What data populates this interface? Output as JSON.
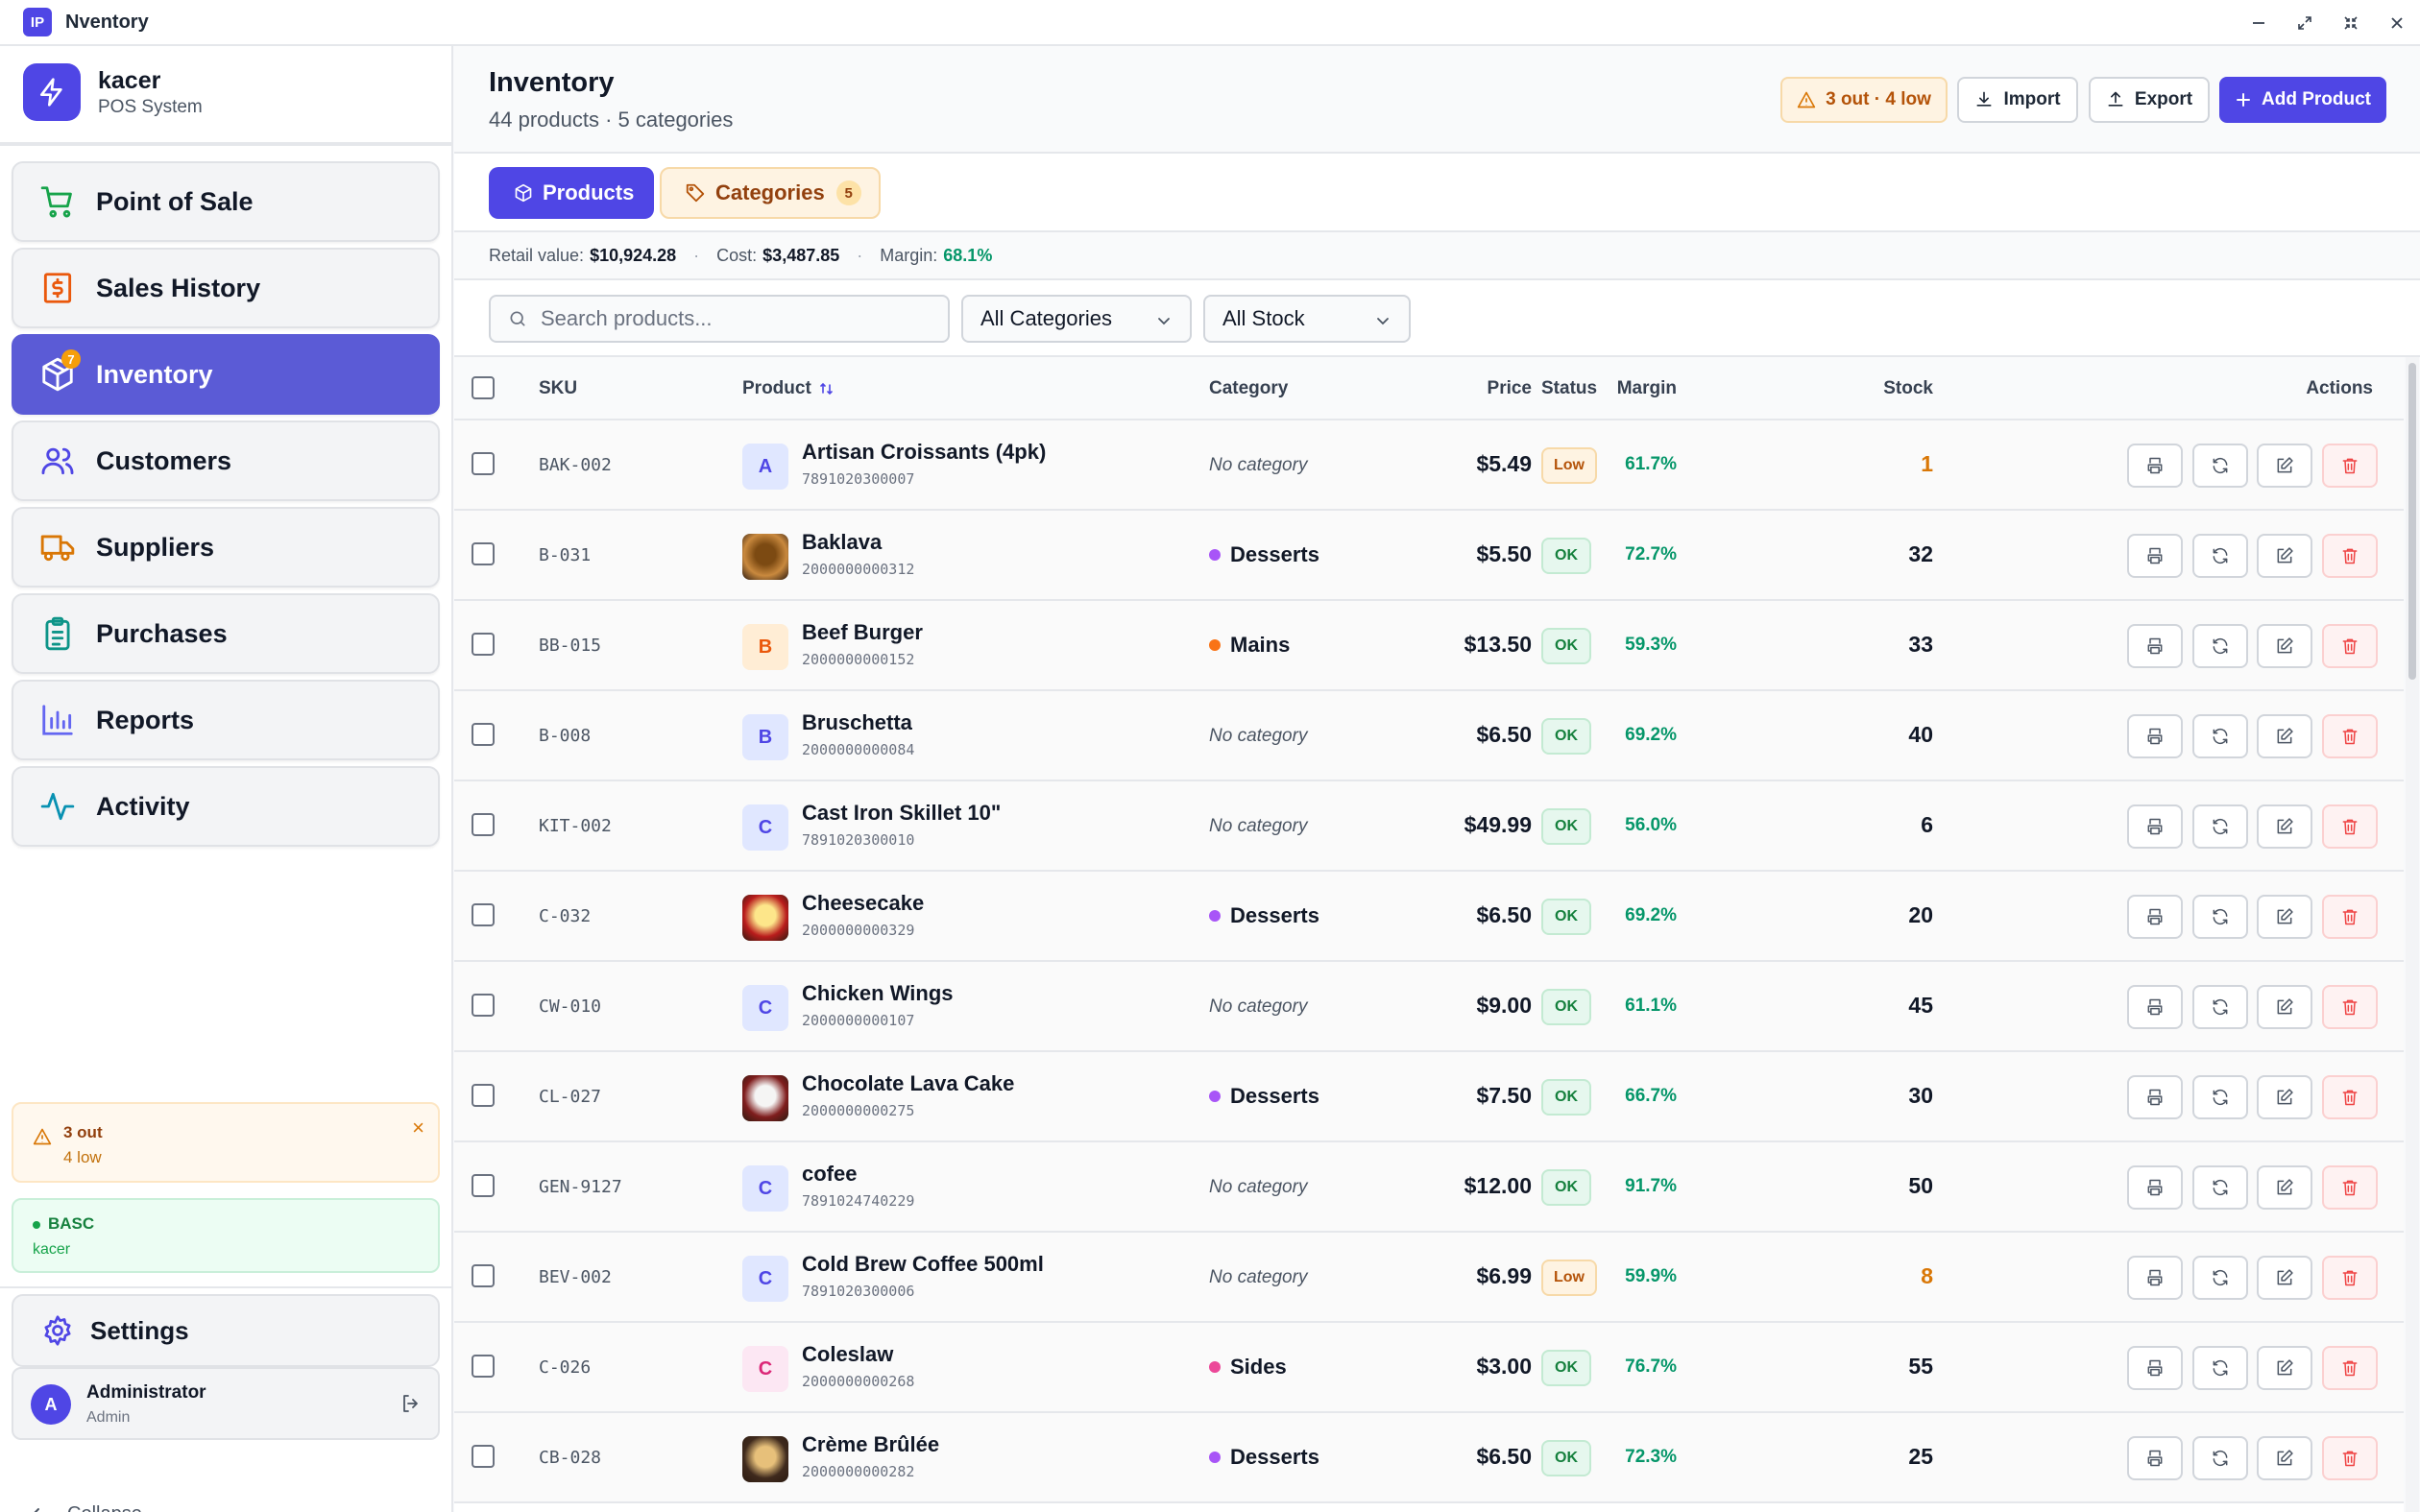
{
  "window": {
    "logo_text": "IP",
    "title": "Nventory"
  },
  "brand": {
    "name": "kacer",
    "subtitle": "POS System"
  },
  "nav": [
    {
      "label": "Point of Sale",
      "icon": "shopping-cart-icon",
      "color": "#16a34a"
    },
    {
      "label": "Sales History",
      "icon": "receipt-dollar-icon",
      "color": "#ea580c"
    },
    {
      "label": "Inventory",
      "icon": "package-icon",
      "color": "#ffffff",
      "active": true,
      "badge": "7"
    },
    {
      "label": "Customers",
      "icon": "users-icon",
      "color": "#4f46e5"
    },
    {
      "label": "Suppliers",
      "icon": "truck-icon",
      "color": "#d97706"
    },
    {
      "label": "Purchases",
      "icon": "clipboard-list-icon",
      "color": "#0d9488"
    },
    {
      "label": "Reports",
      "icon": "bar-chart-icon",
      "color": "#6366f1"
    },
    {
      "label": "Activity",
      "icon": "activity-pulse-icon",
      "color": "#0891b2"
    }
  ],
  "stock_alert": {
    "out": "3 out",
    "low": "4 low",
    "close": "×"
  },
  "plan": {
    "name": "BASC",
    "user": "kacer"
  },
  "settings": {
    "label": "Settings"
  },
  "user": {
    "initial": "A",
    "name": "Administrator",
    "role": "Admin"
  },
  "collapse": {
    "label": "Collapse"
  },
  "header": {
    "title": "Inventory",
    "subtitle": "44 products · 5 categories",
    "alert_label": "3 out · 4 low",
    "import_label": "Import",
    "export_label": "Export",
    "add_label": "Add Product"
  },
  "tabs": {
    "products": "Products",
    "categories": "Categories",
    "categories_count": "5"
  },
  "stats": {
    "retail_label": "Retail value:",
    "retail_value": "$10,924.28",
    "cost_label": "Cost:",
    "cost_value": "$3,487.85",
    "margin_label": "Margin:",
    "margin_value": "68.1%",
    "separator": "·"
  },
  "filters": {
    "search_placeholder": "Search products...",
    "category": "All Categories",
    "stock": "All Stock"
  },
  "table": {
    "columns": {
      "sku": "SKU",
      "product": "Product",
      "category": "Category",
      "price": "Price",
      "margin": "Margin",
      "status": "Status",
      "stock": "Stock",
      "actions": "Actions"
    },
    "rows": [
      {
        "sku": "BAK-002",
        "name": "Artisan Croissants (4pk)",
        "code": "7891020300007",
        "initial": "A",
        "thumb": "letter",
        "thumb_bg": "#e0e7ff",
        "thumb_fg": "#4f46e5",
        "category": "No category",
        "cat_color": "",
        "price": "$5.49",
        "margin": "61.7%",
        "status": "Low",
        "stock": "1"
      },
      {
        "sku": "B-031",
        "name": "Baklava",
        "code": "2000000000312",
        "initial": "",
        "thumb": "photo",
        "thumb_bg": "#c9893e",
        "thumb_fg": "#7c4a12",
        "category": "Desserts",
        "cat_color": "#a855f7",
        "price": "$5.50",
        "margin": "72.7%",
        "status": "OK",
        "stock": "32"
      },
      {
        "sku": "BB-015",
        "name": "Beef Burger",
        "code": "2000000000152",
        "initial": "B",
        "thumb": "letter",
        "thumb_bg": "#ffedd5",
        "thumb_fg": "#ea580c",
        "category": "Mains",
        "cat_color": "#f97316",
        "price": "$13.50",
        "margin": "59.3%",
        "status": "OK",
        "stock": "33"
      },
      {
        "sku": "B-008",
        "name": "Bruschetta",
        "code": "2000000000084",
        "initial": "B",
        "thumb": "letter",
        "thumb_bg": "#e0e7ff",
        "thumb_fg": "#4f46e5",
        "category": "No category",
        "cat_color": "",
        "price": "$6.50",
        "margin": "69.2%",
        "status": "OK",
        "stock": "40"
      },
      {
        "sku": "KIT-002",
        "name": "Cast Iron Skillet 10\"",
        "code": "7891020300010",
        "initial": "C",
        "thumb": "letter",
        "thumb_bg": "#e0e7ff",
        "thumb_fg": "#4f46e5",
        "category": "No category",
        "cat_color": "",
        "price": "$49.99",
        "margin": "56.0%",
        "status": "OK",
        "stock": "6"
      },
      {
        "sku": "C-032",
        "name": "Cheesecake",
        "code": "2000000000329",
        "initial": "",
        "thumb": "photo",
        "thumb_bg": "#b91c1c",
        "thumb_fg": "#fde68a",
        "category": "Desserts",
        "cat_color": "#a855f7",
        "price": "$6.50",
        "margin": "69.2%",
        "status": "OK",
        "stock": "20"
      },
      {
        "sku": "CW-010",
        "name": "Chicken Wings",
        "code": "2000000000107",
        "initial": "C",
        "thumb": "letter",
        "thumb_bg": "#e0e7ff",
        "thumb_fg": "#4f46e5",
        "category": "No category",
        "cat_color": "",
        "price": "$9.00",
        "margin": "61.1%",
        "status": "OK",
        "stock": "45"
      },
      {
        "sku": "CL-027",
        "name": "Chocolate Lava Cake",
        "code": "2000000000275",
        "initial": "",
        "thumb": "photo",
        "thumb_bg": "#7f1d1d",
        "thumb_fg": "#f5f5f4",
        "category": "Desserts",
        "cat_color": "#a855f7",
        "price": "$7.50",
        "margin": "66.7%",
        "status": "OK",
        "stock": "30"
      },
      {
        "sku": "GEN-9127",
        "name": "cofee",
        "code": "7891024740229",
        "initial": "C",
        "thumb": "letter",
        "thumb_bg": "#e0e7ff",
        "thumb_fg": "#4f46e5",
        "category": "No category",
        "cat_color": "",
        "price": "$12.00",
        "margin": "91.7%",
        "status": "OK",
        "stock": "50"
      },
      {
        "sku": "BEV-002",
        "name": "Cold Brew Coffee 500ml",
        "code": "7891020300006",
        "initial": "C",
        "thumb": "letter",
        "thumb_bg": "#e0e7ff",
        "thumb_fg": "#4f46e5",
        "category": "No category",
        "cat_color": "",
        "price": "$6.99",
        "margin": "59.9%",
        "status": "Low",
        "stock": "8"
      },
      {
        "sku": "C-026",
        "name": "Coleslaw",
        "code": "2000000000268",
        "initial": "C",
        "thumb": "letter",
        "thumb_bg": "#fce7f3",
        "thumb_fg": "#db2777",
        "category": "Sides",
        "cat_color": "#ec4899",
        "price": "$3.00",
        "margin": "76.7%",
        "status": "OK",
        "stock": "55"
      },
      {
        "sku": "CB-028",
        "name": "Crème Brûlée",
        "code": "2000000000282",
        "initial": "",
        "thumb": "photo",
        "thumb_bg": "#3f2a1d",
        "thumb_fg": "#e7c07a",
        "category": "Desserts",
        "cat_color": "#a855f7",
        "price": "$6.50",
        "margin": "72.3%",
        "status": "OK",
        "stock": "25"
      }
    ]
  }
}
